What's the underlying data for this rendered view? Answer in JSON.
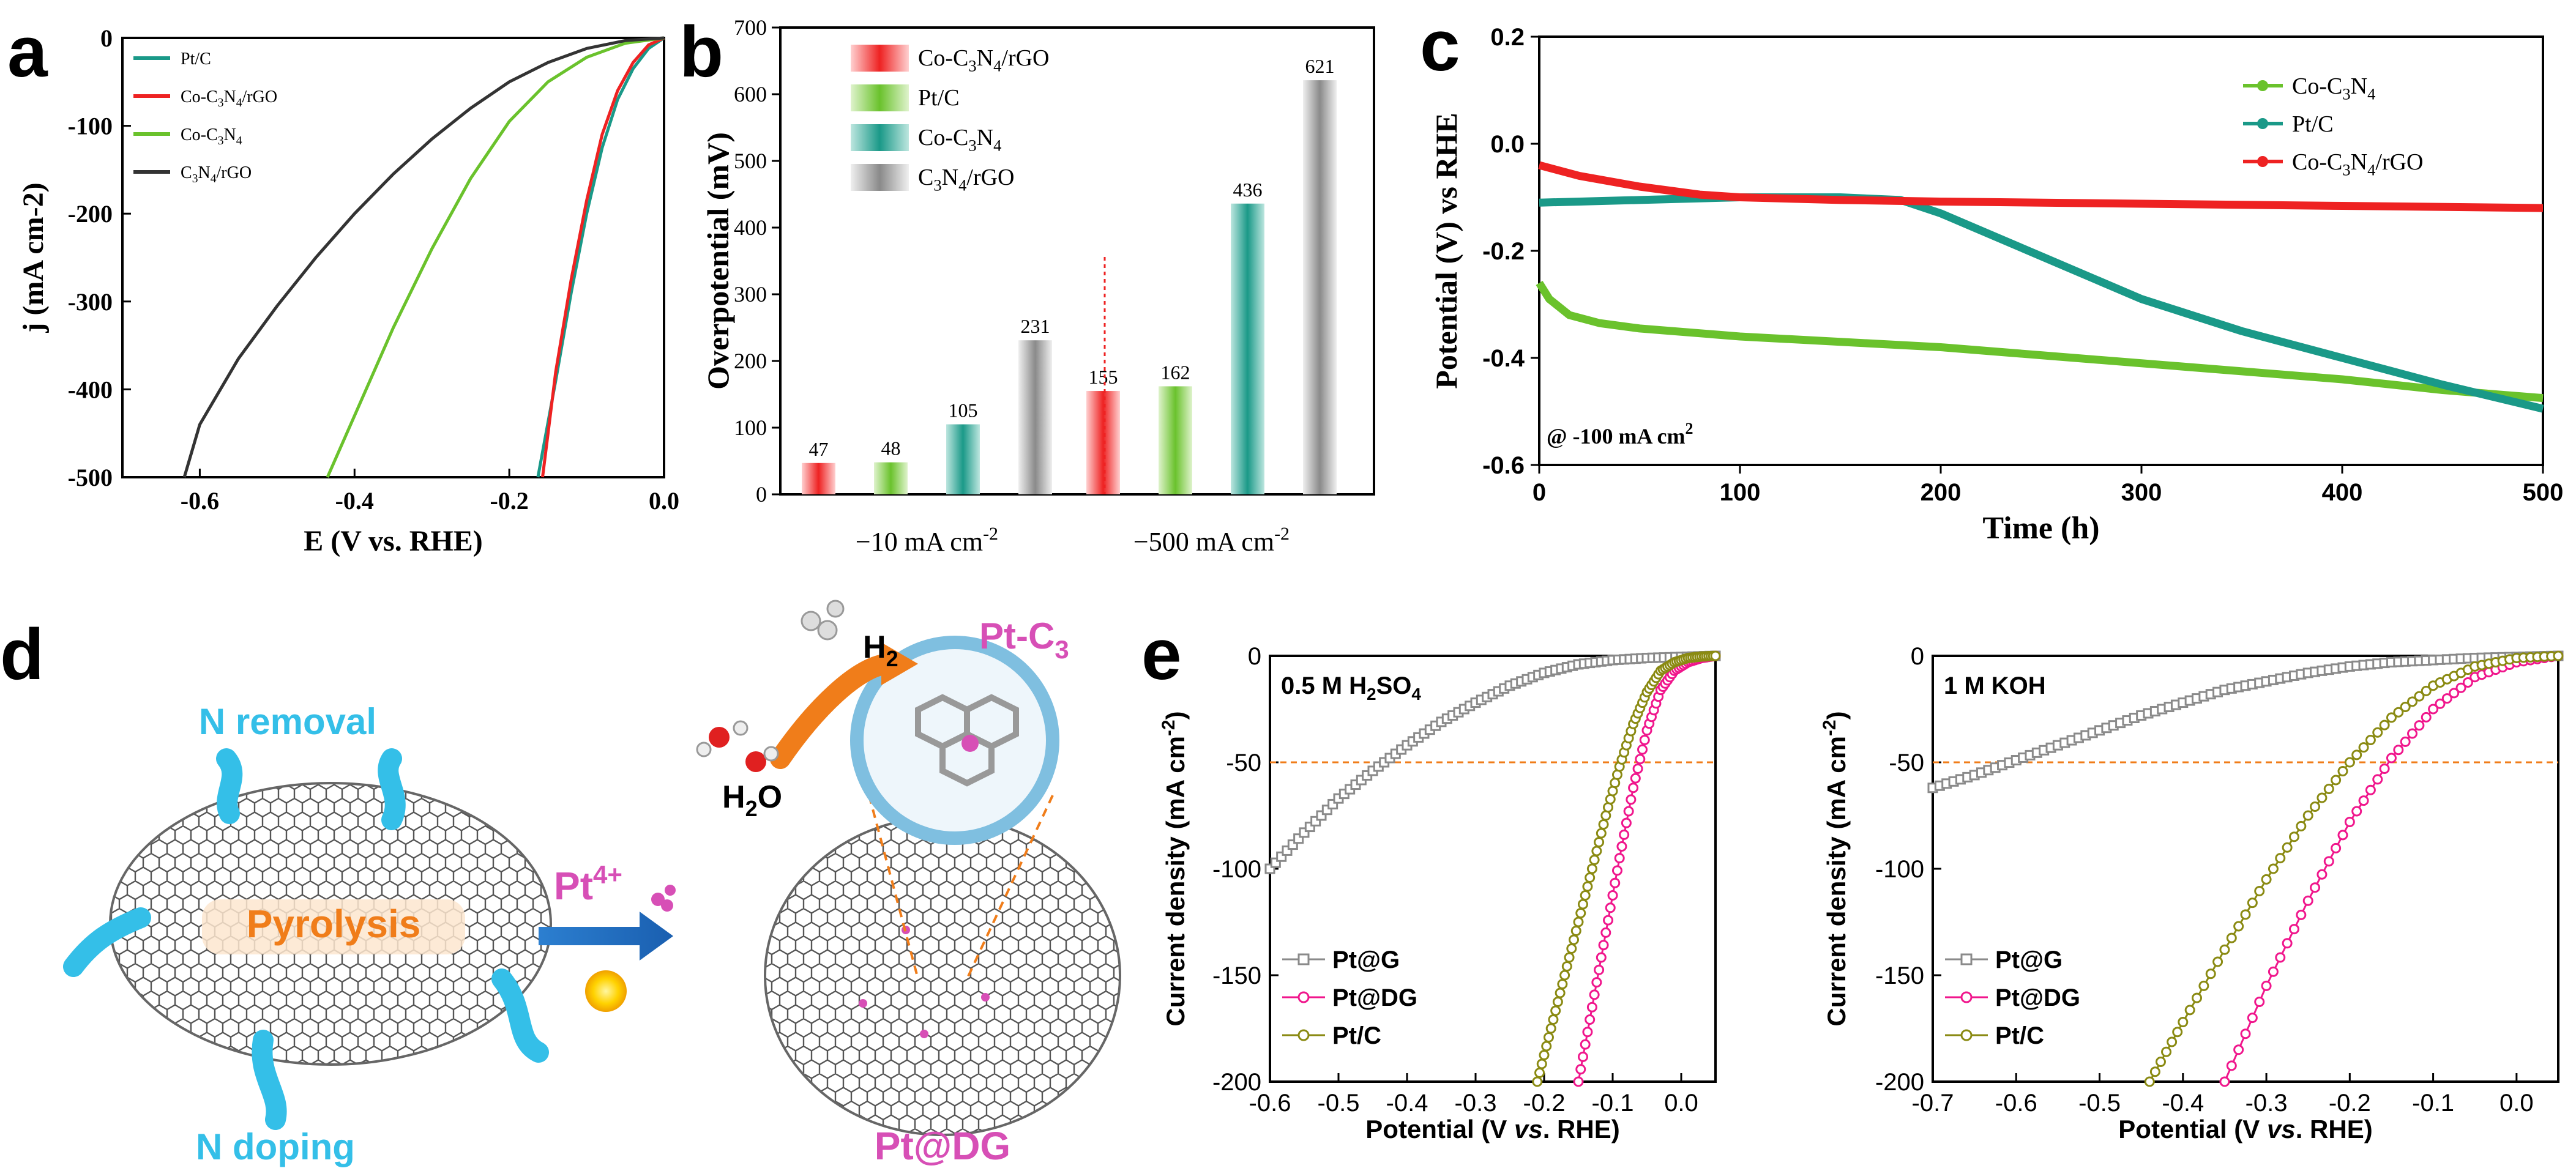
{
  "colors": {
    "teal": "#1a9988",
    "red": "#ee2222",
    "green": "#6ac22c",
    "black": "#333333",
    "grey": "#8a8a8a",
    "magenta": "#f0168c",
    "olive": "#8a8a12",
    "orange": "#f07d1a",
    "cyan": "#34bfe8",
    "pink": "#d74fb6"
  },
  "panels": {
    "a": {
      "letter": "a"
    },
    "b": {
      "letter": "b"
    },
    "c": {
      "letter": "c"
    },
    "d": {
      "letter": "d"
    },
    "e": {
      "letter": "e"
    }
  },
  "chart_data": [
    {
      "id": "a",
      "type": "line",
      "title": "",
      "xlabel": "E (V vs. RHE)",
      "ylabel": "j (mA cm-2)",
      "xlim": [
        -0.7,
        0.0
      ],
      "ylim": [
        -500,
        0
      ],
      "xticks": [
        -0.6,
        -0.4,
        -0.2,
        0.0
      ],
      "xtick_labels": [
        "-0.6",
        "-0.4",
        "-0.2",
        "0.0"
      ],
      "yticks": [
        0,
        -100,
        -200,
        -300,
        -400,
        -500
      ],
      "ytick_labels": [
        "0",
        "-100",
        "-200",
        "-300",
        "-400",
        "-500"
      ],
      "legend_position": "top-left",
      "series": [
        {
          "name": "Pt/C",
          "label_main": "Pt/C",
          "color": "#1a9988",
          "x": [
            0.0,
            -0.02,
            -0.04,
            -0.06,
            -0.08,
            -0.1,
            -0.12,
            -0.14,
            -0.163
          ],
          "y": [
            0,
            -12,
            -35,
            -70,
            -125,
            -200,
            -290,
            -390,
            -500
          ]
        },
        {
          "name": "Co-C3N4/rGO",
          "label_main": "Co-C",
          "label_sub1": "3",
          "label_mid": "N",
          "label_sub2": "4",
          "label_end": "/rGO",
          "color": "#ee2222",
          "x": [
            0.0,
            -0.02,
            -0.04,
            -0.06,
            -0.08,
            -0.1,
            -0.12,
            -0.14,
            -0.157
          ],
          "y": [
            0,
            -8,
            -28,
            -60,
            -110,
            -185,
            -275,
            -380,
            -500
          ]
        },
        {
          "name": "Co-C3N4",
          "label_main": "Co-C",
          "label_sub1": "3",
          "label_mid": "N",
          "label_sub2": "4",
          "label_end": "",
          "color": "#6ac22c",
          "x": [
            0.0,
            -0.05,
            -0.1,
            -0.15,
            -0.2,
            -0.25,
            -0.3,
            -0.35,
            -0.4,
            -0.435
          ],
          "y": [
            0,
            -6,
            -22,
            -50,
            -95,
            -160,
            -240,
            -330,
            -430,
            -500
          ]
        },
        {
          "name": "C3N4/rGO",
          "label_main": "C",
          "label_sub1": "3",
          "label_mid": "N",
          "label_sub2": "4",
          "label_end": "/rGO",
          "color": "#333333",
          "x": [
            0.0,
            -0.05,
            -0.1,
            -0.15,
            -0.2,
            -0.25,
            -0.3,
            -0.35,
            -0.4,
            -0.45,
            -0.5,
            -0.55,
            -0.6,
            -0.62
          ],
          "y": [
            0,
            -3,
            -12,
            -28,
            -50,
            -80,
            -115,
            -155,
            -200,
            -250,
            -305,
            -365,
            -440,
            -500
          ]
        }
      ]
    },
    {
      "id": "b",
      "type": "bar",
      "title": "",
      "xlabel": "",
      "ylabel": "Overpotential (mV)",
      "ylim": [
        0,
        700
      ],
      "yticks": [
        0,
        100,
        200,
        300,
        400,
        500,
        600,
        700
      ],
      "ytick_labels": [
        "0",
        "100",
        "200",
        "300",
        "400",
        "500",
        "600",
        "700"
      ],
      "group_labels": [
        {
          "main": "−10 mA cm",
          "sup": "-2"
        },
        {
          "main": "−500 mA cm",
          "sup": "-2"
        }
      ],
      "legend_position": "top-left",
      "series": [
        {
          "name": "Co-C3N4/rGO",
          "label_main": "Co-C",
          "label_sub1": "3",
          "label_mid": "N",
          "label_sub2": "4",
          "label_end": "/rGO",
          "color": "#ee2222",
          "values": [
            47,
            155
          ]
        },
        {
          "name": "Pt/C",
          "label_main": "Pt/C",
          "color": "#6ac22c",
          "values": [
            48,
            162
          ]
        },
        {
          "name": "Co-C3N4",
          "label_main": "Co-C",
          "label_sub1": "3",
          "label_mid": "N",
          "label_sub2": "4",
          "label_end": "",
          "color": "#1a9988",
          "values": [
            105,
            436
          ]
        },
        {
          "name": "C3N4/rGO",
          "label_main": "C",
          "label_sub1": "3",
          "label_mid": "N",
          "label_sub2": "4",
          "label_end": "/rGO",
          "color": "#8a8a8a",
          "values": [
            231,
            621
          ]
        }
      ],
      "data_labels": [
        [
          "47",
          "48",
          "105",
          "231"
        ],
        [
          "155",
          "162",
          "436",
          "621"
        ]
      ]
    },
    {
      "id": "c",
      "type": "line",
      "title": "",
      "xlabel": "Time (h)",
      "ylabel": "Potential (V) vs RHE",
      "xlim": [
        0,
        500
      ],
      "ylim": [
        -0.6,
        0.2
      ],
      "xticks": [
        0,
        100,
        200,
        300,
        400,
        500
      ],
      "xtick_labels": [
        "0",
        "100",
        "200",
        "300",
        "400",
        "500"
      ],
      "yticks": [
        0.2,
        0.0,
        -0.2,
        -0.4,
        -0.6
      ],
      "ytick_labels": [
        "0.2",
        "0.0",
        "-0.2",
        "-0.4",
        "-0.6"
      ],
      "annotation": {
        "main": "@ -100 mA cm",
        "sup": "2"
      },
      "legend_position": "top-right",
      "series": [
        {
          "name": "Co-C3N4",
          "label_main": "Co-C",
          "label_sub1": "3",
          "label_mid": "N",
          "label_sub2": "4",
          "label_end": "",
          "color": "#6ac22c",
          "x": [
            0,
            5,
            15,
            30,
            50,
            100,
            150,
            200,
            250,
            300,
            350,
            400,
            450,
            500
          ],
          "y": [
            -0.26,
            -0.29,
            -0.32,
            -0.335,
            -0.345,
            -0.36,
            -0.37,
            -0.38,
            -0.395,
            -0.41,
            -0.425,
            -0.44,
            -0.46,
            -0.475
          ]
        },
        {
          "name": "Pt/C",
          "label_main": "Pt/C",
          "color": "#1a9988",
          "x": [
            0,
            50,
            100,
            150,
            180,
            200,
            250,
            300,
            350,
            400,
            450,
            500
          ],
          "y": [
            -0.11,
            -0.105,
            -0.1,
            -0.1,
            -0.105,
            -0.13,
            -0.21,
            -0.29,
            -0.35,
            -0.4,
            -0.45,
            -0.495
          ]
        },
        {
          "name": "Co-C3N4/rGO",
          "label_main": "Co-C",
          "label_sub1": "3",
          "label_mid": "N",
          "label_sub2": "4",
          "label_end": "/rGO",
          "color": "#ee2222",
          "x": [
            0,
            20,
            50,
            80,
            100,
            150,
            200,
            300,
            400,
            500
          ],
          "y": [
            -0.04,
            -0.06,
            -0.08,
            -0.095,
            -0.1,
            -0.105,
            -0.108,
            -0.112,
            -0.116,
            -0.12
          ]
        }
      ]
    },
    {
      "id": "e1",
      "type": "line",
      "title": "",
      "panel_label": {
        "main": "0.5 M H",
        "sub": "2",
        "end": "SO",
        "sub2": "4"
      },
      "xlabel": {
        "main": "Potential (V ",
        "italic": "vs",
        "end": ". RHE)"
      },
      "ylabel": {
        "main": "Current density (mA cm",
        "sup": "-2",
        "end": ")"
      },
      "xlim": [
        -0.6,
        0.05
      ],
      "ylim": [
        -200,
        0
      ],
      "xticks": [
        -0.6,
        -0.5,
        -0.4,
        -0.3,
        -0.2,
        -0.1,
        0.0
      ],
      "xtick_labels": [
        "-0.6",
        "-0.5",
        "-0.4",
        "-0.3",
        "-0.2",
        "-0.1",
        "0.0"
      ],
      "yticks": [
        0,
        -50,
        -100,
        -150,
        -200
      ],
      "ytick_labels": [
        "0",
        "-50",
        "-100",
        "-150",
        "-200"
      ],
      "reference_line_y": -50,
      "legend_position": "bottom-left",
      "series": [
        {
          "name": "Pt@G",
          "color": "#8a8a8a",
          "marker": "square",
          "x": [
            -0.6,
            -0.55,
            -0.5,
            -0.45,
            -0.4,
            -0.35,
            -0.3,
            -0.25,
            -0.2,
            -0.15,
            -0.1,
            -0.05,
            0.0,
            0.05
          ],
          "y": [
            -100,
            -83,
            -67,
            -54,
            -42,
            -31,
            -22,
            -14,
            -8,
            -4,
            -2,
            -1,
            -0.5,
            0
          ]
        },
        {
          "name": "Pt@DG",
          "color": "#f0168c",
          "marker": "circle",
          "x": [
            -0.15,
            -0.13,
            -0.11,
            -0.09,
            -0.07,
            -0.05,
            -0.03,
            -0.01,
            0.01,
            0.03,
            0.05
          ],
          "y": [
            -200,
            -165,
            -130,
            -95,
            -62,
            -35,
            -16,
            -7,
            -3,
            -1,
            0
          ]
        },
        {
          "name": "Pt/C",
          "color": "#8a8a12",
          "marker": "circle",
          "x": [
            -0.21,
            -0.19,
            -0.17,
            -0.15,
            -0.13,
            -0.11,
            -0.09,
            -0.07,
            -0.05,
            -0.03,
            -0.01,
            0.01,
            0.03,
            0.05
          ],
          "y": [
            -200,
            -175,
            -150,
            -125,
            -100,
            -75,
            -52,
            -32,
            -17,
            -7,
            -3,
            -1,
            -0.3,
            0
          ]
        }
      ]
    },
    {
      "id": "e2",
      "type": "line",
      "title": "",
      "panel_label": {
        "main": "1 M KOH"
      },
      "xlabel": {
        "main": "Potential (V ",
        "italic": "vs",
        "end": ". RHE)"
      },
      "ylabel": {
        "main": "Current density (mA cm",
        "sup": "-2",
        "end": ")"
      },
      "xlim": [
        -0.7,
        0.05
      ],
      "ylim": [
        -200,
        0
      ],
      "xticks": [
        -0.7,
        -0.6,
        -0.5,
        -0.4,
        -0.3,
        -0.2,
        -0.1,
        0.0
      ],
      "xtick_labels": [
        "-0.7",
        "-0.6",
        "-0.5",
        "-0.4",
        "-0.3",
        "-0.2",
        "-0.1",
        "0.0"
      ],
      "yticks": [
        0,
        -50,
        -100,
        -150,
        -200
      ],
      "ytick_labels": [
        "0",
        "-50",
        "-100",
        "-150",
        "-200"
      ],
      "reference_line_y": -50,
      "legend_position": "bottom-left",
      "series": [
        {
          "name": "Pt@G",
          "color": "#8a8a8a",
          "marker": "square",
          "x": [
            -0.7,
            -0.65,
            -0.6,
            -0.55,
            -0.5,
            -0.45,
            -0.4,
            -0.35,
            -0.3,
            -0.25,
            -0.2,
            -0.15,
            -0.1,
            -0.05,
            0.0,
            0.05
          ],
          "y": [
            -62,
            -56,
            -49,
            -42,
            -35,
            -28,
            -22,
            -16,
            -12,
            -8,
            -5,
            -3,
            -2,
            -1,
            -0.5,
            0
          ]
        },
        {
          "name": "Pt@DG",
          "color": "#f0168c",
          "marker": "circle",
          "x": [
            -0.35,
            -0.3,
            -0.25,
            -0.2,
            -0.15,
            -0.1,
            -0.05,
            0.0,
            0.05
          ],
          "y": [
            -200,
            -155,
            -115,
            -78,
            -48,
            -25,
            -10,
            -3,
            0
          ]
        },
        {
          "name": "Pt/C",
          "color": "#8a8a12",
          "marker": "circle",
          "x": [
            -0.44,
            -0.4,
            -0.35,
            -0.3,
            -0.25,
            -0.2,
            -0.15,
            -0.1,
            -0.05,
            0.0,
            0.05
          ],
          "y": [
            -200,
            -172,
            -138,
            -105,
            -75,
            -50,
            -29,
            -14,
            -5,
            -1,
            0
          ]
        }
      ]
    }
  ],
  "schematic": {
    "n_removal": "N removal",
    "n_doping": "N doping",
    "pyrolysis": "Pyrolysis",
    "pt_ion": {
      "main": "Pt",
      "sup": "4+"
    },
    "h2": {
      "main": "H",
      "sub": "2"
    },
    "h2o": {
      "main": "H",
      "sub": "2",
      "end": "O"
    },
    "pt_c3": {
      "main": "Pt-C",
      "sub": "3"
    },
    "product": "Pt@DG"
  }
}
